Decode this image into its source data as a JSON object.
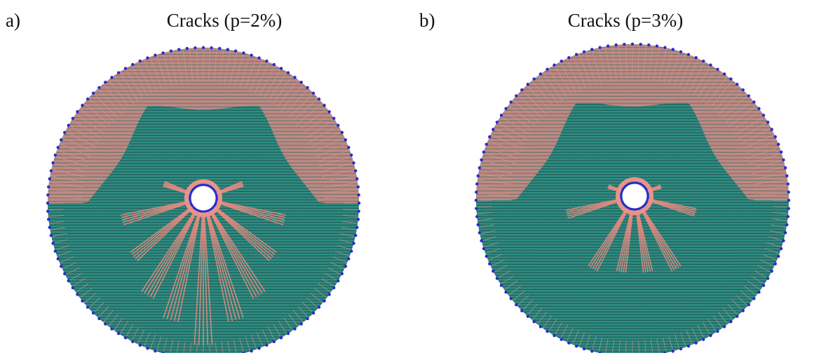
{
  "panels": [
    {
      "label": "a)",
      "title": "Cracks (p=2%)"
    },
    {
      "label": "b)",
      "title": "Cracks (p=3%)"
    }
  ]
}
